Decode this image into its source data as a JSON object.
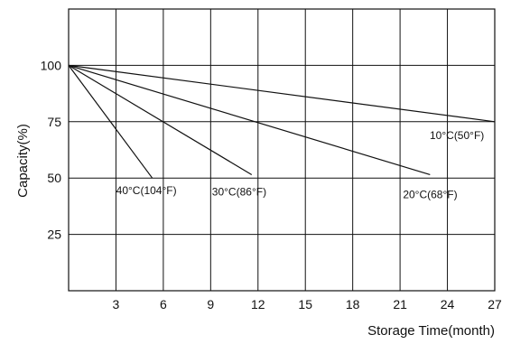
{
  "chart_data": {
    "type": "line",
    "xlabel": "Storage  Time(month)",
    "ylabel": "Capacity(%)",
    "xlim": [
      0,
      27
    ],
    "ylim": [
      0,
      125
    ],
    "x_ticks": [
      3,
      6,
      9,
      12,
      15,
      18,
      21,
      24,
      27
    ],
    "y_ticks": [
      25,
      50,
      75,
      100
    ],
    "x_grid": [
      0,
      3,
      6,
      9,
      12,
      15,
      18,
      21,
      24,
      27
    ],
    "y_grid": [
      0,
      25,
      50,
      75,
      100,
      125
    ],
    "grid": true,
    "series": [
      {
        "label_text": "10°C(50°F)",
        "x": [
          0,
          27
        ],
        "y": [
          100,
          75
        ]
      },
      {
        "label_text": "20°C(68°F)",
        "x": [
          0,
          22.9
        ],
        "y": [
          100,
          51.5
        ]
      },
      {
        "label_text": "30°C(86°F)",
        "x": [
          0,
          11.6
        ],
        "y": [
          100,
          51.5
        ]
      },
      {
        "label_text": "40°C(104°F)",
        "x": [
          0,
          5.3
        ],
        "y": [
          100,
          50
        ]
      }
    ]
  }
}
